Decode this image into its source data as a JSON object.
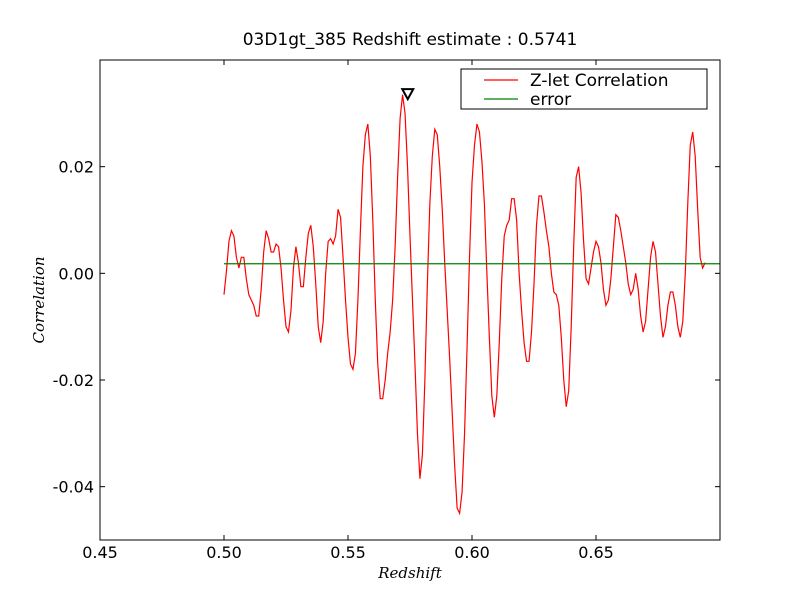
{
  "chart_data": {
    "type": "line",
    "title": "03D1gt_385 Redshift estimate : 0.5741",
    "xlabel": "Redshift",
    "ylabel": "Correlation",
    "xlim": [
      0.45,
      0.7
    ],
    "ylim": [
      -0.05,
      0.04
    ],
    "xticks": [
      0.45,
      0.5,
      0.55,
      0.6,
      0.65
    ],
    "xtick_labels": [
      "0.45",
      "0.50",
      "0.55",
      "0.60",
      "0.65"
    ],
    "yticks": [
      -0.04,
      -0.02,
      0.0,
      0.02
    ],
    "ytick_labels": [
      "-0.04",
      "-0.02",
      "0.00",
      "0.02"
    ],
    "legend_position": "top-right",
    "grid": false,
    "series": [
      {
        "name": "Z-let Correlation",
        "color": "#ff0000",
        "points": [
          [
            0.5,
            -0.004
          ],
          [
            0.501,
            0.0005
          ],
          [
            0.502,
            0.006
          ],
          [
            0.503,
            0.008
          ],
          [
            0.504,
            0.007
          ],
          [
            0.505,
            0.003
          ],
          [
            0.506,
            0.001
          ],
          [
            0.507,
            0.003
          ],
          [
            0.508,
            0.003
          ],
          [
            0.509,
            -0.001
          ],
          [
            0.51,
            -0.004
          ],
          [
            0.511,
            -0.005
          ],
          [
            0.512,
            -0.006
          ],
          [
            0.513,
            -0.008
          ],
          [
            0.514,
            -0.008
          ],
          [
            0.515,
            -0.003
          ],
          [
            0.516,
            0.004
          ],
          [
            0.517,
            0.008
          ],
          [
            0.518,
            0.0065
          ],
          [
            0.519,
            0.004
          ],
          [
            0.52,
            0.004
          ],
          [
            0.521,
            0.0055
          ],
          [
            0.522,
            0.005
          ],
          [
            0.523,
            0.001
          ],
          [
            0.524,
            -0.005
          ],
          [
            0.525,
            -0.01
          ],
          [
            0.526,
            -0.011
          ],
          [
            0.527,
            -0.007
          ],
          [
            0.528,
            0.001
          ],
          [
            0.529,
            0.005
          ],
          [
            0.53,
            0.002
          ],
          [
            0.531,
            -0.0025
          ],
          [
            0.532,
            -0.0025
          ],
          [
            0.533,
            0.003
          ],
          [
            0.534,
            0.0075
          ],
          [
            0.535,
            0.009
          ],
          [
            0.536,
            0.005
          ],
          [
            0.537,
            -0.002
          ],
          [
            0.538,
            -0.01
          ],
          [
            0.539,
            -0.013
          ],
          [
            0.54,
            -0.009
          ],
          [
            0.541,
            0.0
          ],
          [
            0.542,
            0.006
          ],
          [
            0.543,
            0.0065
          ],
          [
            0.544,
            0.0055
          ],
          [
            0.545,
            0.007
          ],
          [
            0.546,
            0.012
          ],
          [
            0.547,
            0.0105
          ],
          [
            0.548,
            0.003
          ],
          [
            0.549,
            -0.005
          ],
          [
            0.55,
            -0.012
          ],
          [
            0.551,
            -0.017
          ],
          [
            0.552,
            -0.018
          ],
          [
            0.553,
            -0.015
          ],
          [
            0.554,
            -0.005
          ],
          [
            0.555,
            0.008
          ],
          [
            0.556,
            0.02
          ],
          [
            0.557,
            0.026
          ],
          [
            0.558,
            0.028
          ],
          [
            0.559,
            0.022
          ],
          [
            0.56,
            0.01
          ],
          [
            0.561,
            -0.005
          ],
          [
            0.562,
            -0.017
          ],
          [
            0.563,
            -0.0235
          ],
          [
            0.564,
            -0.0235
          ],
          [
            0.565,
            -0.02
          ],
          [
            0.566,
            -0.015
          ],
          [
            0.567,
            -0.011
          ],
          [
            0.568,
            -0.005
          ],
          [
            0.569,
            0.005
          ],
          [
            0.57,
            0.018
          ],
          [
            0.571,
            0.029
          ],
          [
            0.572,
            0.0335
          ],
          [
            0.573,
            0.03
          ],
          [
            0.574,
            0.02
          ],
          [
            0.575,
            0.007
          ],
          [
            0.576,
            -0.005
          ],
          [
            0.577,
            -0.017
          ],
          [
            0.578,
            -0.03
          ],
          [
            0.579,
            -0.0385
          ],
          [
            0.58,
            -0.034
          ],
          [
            0.581,
            -0.02
          ],
          [
            0.582,
            -0.002
          ],
          [
            0.583,
            0.013
          ],
          [
            0.584,
            0.022
          ],
          [
            0.585,
            0.027
          ],
          [
            0.586,
            0.026
          ],
          [
            0.587,
            0.02
          ],
          [
            0.588,
            0.012
          ],
          [
            0.589,
            0.002
          ],
          [
            0.59,
            -0.007
          ],
          [
            0.591,
            -0.016
          ],
          [
            0.592,
            -0.026
          ],
          [
            0.593,
            -0.036
          ],
          [
            0.594,
            -0.044
          ],
          [
            0.595,
            -0.045
          ],
          [
            0.596,
            -0.041
          ],
          [
            0.597,
            -0.03
          ],
          [
            0.598,
            -0.014
          ],
          [
            0.599,
            0.003
          ],
          [
            0.6,
            0.017
          ],
          [
            0.601,
            0.024
          ],
          [
            0.602,
            0.028
          ],
          [
            0.603,
            0.0265
          ],
          [
            0.604,
            0.021
          ],
          [
            0.605,
            0.013
          ],
          [
            0.606,
            0.0
          ],
          [
            0.607,
            -0.012
          ],
          [
            0.608,
            -0.023
          ],
          [
            0.609,
            -0.027
          ],
          [
            0.61,
            -0.023
          ],
          [
            0.611,
            -0.013
          ],
          [
            0.612,
            -0.001
          ],
          [
            0.613,
            0.007
          ],
          [
            0.614,
            0.009
          ],
          [
            0.615,
            0.01
          ],
          [
            0.616,
            0.014
          ],
          [
            0.617,
            0.014
          ],
          [
            0.618,
            0.01
          ],
          [
            0.619,
            0.0
          ],
          [
            0.62,
            -0.007
          ],
          [
            0.621,
            -0.013
          ],
          [
            0.622,
            -0.0165
          ],
          [
            0.623,
            -0.0165
          ],
          [
            0.624,
            -0.011
          ],
          [
            0.625,
            -0.002
          ],
          [
            0.626,
            0.009
          ],
          [
            0.627,
            0.0145
          ],
          [
            0.628,
            0.0145
          ],
          [
            0.629,
            0.0115
          ],
          [
            0.63,
            0.008
          ],
          [
            0.631,
            0.005
          ],
          [
            0.632,
            0.0
          ],
          [
            0.633,
            -0.0035
          ],
          [
            0.634,
            -0.004
          ],
          [
            0.635,
            -0.006
          ],
          [
            0.636,
            -0.012
          ],
          [
            0.637,
            -0.02
          ],
          [
            0.638,
            -0.025
          ],
          [
            0.639,
            -0.022
          ],
          [
            0.64,
            -0.01
          ],
          [
            0.641,
            0.005
          ],
          [
            0.642,
            0.018
          ],
          [
            0.643,
            0.02
          ],
          [
            0.644,
            0.015
          ],
          [
            0.645,
            0.006
          ],
          [
            0.646,
            -0.001
          ],
          [
            0.647,
            -0.002
          ],
          [
            0.648,
            0.001
          ],
          [
            0.649,
            0.004
          ],
          [
            0.65,
            0.006
          ],
          [
            0.651,
            0.005
          ],
          [
            0.652,
            0.002
          ],
          [
            0.653,
            -0.003
          ],
          [
            0.654,
            -0.006
          ],
          [
            0.655,
            -0.005
          ],
          [
            0.656,
            -0.001
          ],
          [
            0.657,
            0.005
          ],
          [
            0.658,
            0.011
          ],
          [
            0.659,
            0.0105
          ],
          [
            0.66,
            0.008
          ],
          [
            0.661,
            0.005
          ],
          [
            0.662,
            0.002
          ],
          [
            0.663,
            -0.002
          ],
          [
            0.664,
            -0.004
          ],
          [
            0.665,
            -0.003
          ],
          [
            0.666,
            0.0
          ],
          [
            0.667,
            -0.003
          ],
          [
            0.668,
            -0.008
          ],
          [
            0.669,
            -0.011
          ],
          [
            0.67,
            -0.009
          ],
          [
            0.671,
            -0.003
          ],
          [
            0.672,
            0.003
          ],
          [
            0.673,
            0.006
          ],
          [
            0.674,
            0.004
          ],
          [
            0.675,
            -0.002
          ],
          [
            0.676,
            -0.008
          ],
          [
            0.677,
            -0.012
          ],
          [
            0.678,
            -0.01
          ],
          [
            0.679,
            -0.006
          ],
          [
            0.68,
            -0.0035
          ],
          [
            0.681,
            -0.0035
          ],
          [
            0.682,
            -0.006
          ],
          [
            0.683,
            -0.01
          ],
          [
            0.684,
            -0.012
          ],
          [
            0.685,
            -0.009
          ],
          [
            0.686,
            0.0
          ],
          [
            0.687,
            0.013
          ],
          [
            0.688,
            0.024
          ],
          [
            0.689,
            0.0265
          ],
          [
            0.69,
            0.022
          ],
          [
            0.691,
            0.012
          ],
          [
            0.692,
            0.003
          ],
          [
            0.693,
            0.001
          ],
          [
            0.694,
            0.002
          ]
        ]
      },
      {
        "name": "error",
        "color": "#008000",
        "points": [
          [
            0.5,
            0.0018
          ],
          [
            0.7,
            0.0018
          ]
        ]
      }
    ],
    "marker": {
      "x": 0.5741,
      "y": 0.0336,
      "shape": "triangle-down",
      "color": "#000000"
    }
  }
}
